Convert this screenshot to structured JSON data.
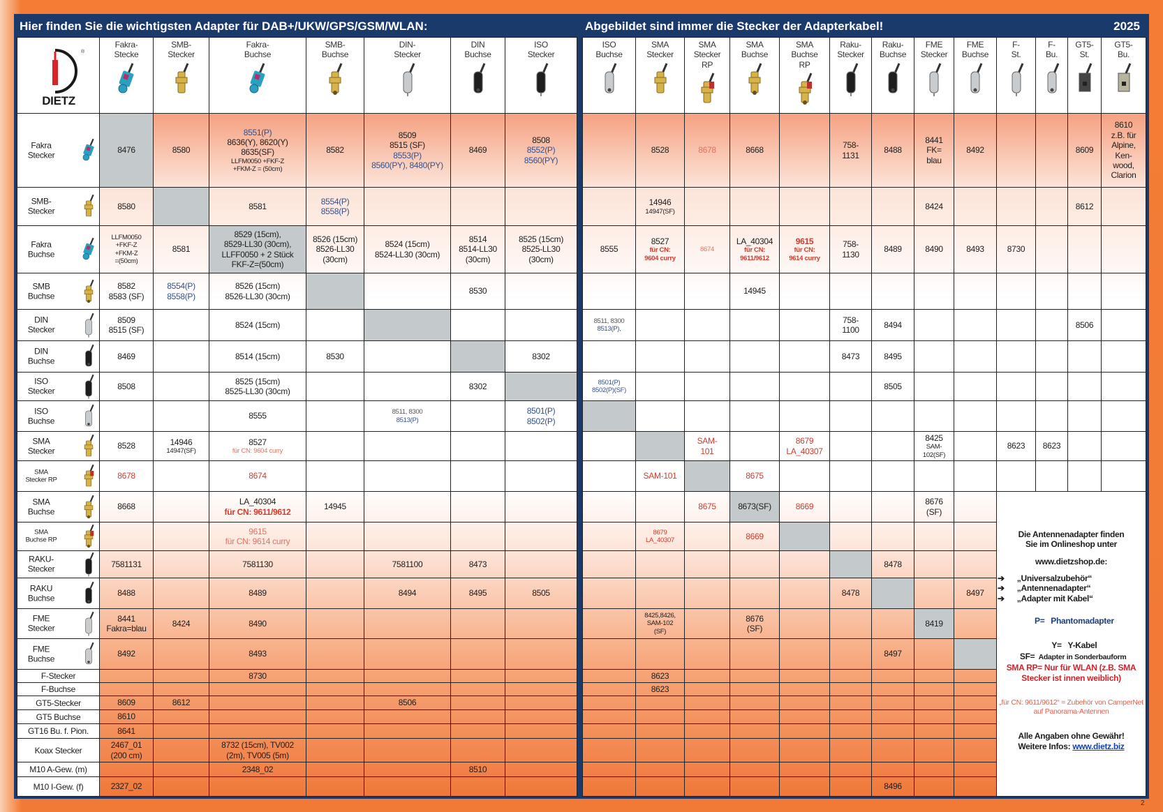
{
  "title_left": "Hier finden Sie die wichtigsten Adapter für DAB+/UKW/GPS/GSM/WLAN:",
  "title_right": "Abgebildet sind immer die Stecker der Adapterkabel!",
  "year": "2025",
  "logo_text": "DIETZ",
  "page_number": "2",
  "colors": {
    "navy": "#1b3a6c",
    "orange": "#f07a36",
    "shade": "#c4cacb",
    "blue": "#34508e",
    "red": "#d23a2c",
    "redlight": "#e0735f"
  },
  "icon_colors": {
    "fakra": "#2a9fc0",
    "gold": "#d6b24a",
    "silver": "#c9cccf",
    "black": "#1e1e1e",
    "beige": "#b8b39c",
    "dark": "#444"
  },
  "columns_left": [
    {
      "label": "Fakra-\nStecke",
      "icon": "fakra-plug-icon",
      "color": "fakra"
    },
    {
      "label": "SMB-\nStecker",
      "icon": "smb-plug-icon",
      "color": "gold"
    },
    {
      "label": "Fakra-\nBuchse",
      "icon": "fakra-socket-icon",
      "color": "fakra"
    },
    {
      "label": "SMB-\nBuchse",
      "icon": "smb-socket-icon",
      "color": "gold"
    },
    {
      "label": "DIN-\nStecker",
      "icon": "din-plug-icon",
      "color": "silver"
    },
    {
      "label": "DIN\nBuchse",
      "icon": "din-socket-icon",
      "color": "black"
    },
    {
      "label": "ISO\nStecker",
      "icon": "iso-plug-icon",
      "color": "black"
    }
  ],
  "columns_right": [
    {
      "label": "ISO\nBuchse",
      "icon": "iso-socket-icon",
      "color": "silver"
    },
    {
      "label": "SMA\nStecker",
      "icon": "sma-plug-icon",
      "color": "gold"
    },
    {
      "label": "SMA\nStecker\nRP",
      "icon": "sma-rp-plug-icon",
      "color": "gold"
    },
    {
      "label": "SMA\nBuchse",
      "icon": "sma-socket-icon",
      "color": "gold"
    },
    {
      "label": "SMA\nBuchse\nRP",
      "icon": "sma-rp-socket-icon",
      "color": "gold"
    },
    {
      "label": "Raku-\nStecker",
      "icon": "raku-plug-icon",
      "color": "black"
    },
    {
      "label": "Raku-\nBuchse",
      "icon": "raku-socket-icon",
      "color": "black"
    },
    {
      "label": "FME\nStecker",
      "icon": "fme-plug-icon",
      "color": "silver"
    },
    {
      "label": "FME\nBuchse",
      "icon": "fme-socket-icon",
      "color": "silver"
    },
    {
      "label": "F-\nSt.",
      "icon": "f-plug-icon",
      "color": "silver"
    },
    {
      "label": "F-\nBu.",
      "icon": "f-socket-icon",
      "color": "silver"
    },
    {
      "label": "GT5-\nSt.",
      "icon": "gt5-plug-icon",
      "color": "dark"
    },
    {
      "label": "GT5-\nBu.",
      "icon": "gt5-socket-icon",
      "color": "beige"
    }
  ],
  "rows": [
    {
      "label": "Fakra\nStecker",
      "icon": "fakra-plug-icon",
      "color": "fakra",
      "shade_left": 0,
      "left": [
        "8476",
        "8580",
        [
          {
            "t": "8551(P)",
            "c": "blue"
          },
          {
            "t": "8636(Y), 8620(Y)\n8635(SF)"
          },
          {
            "t": "LLFM0050 +FKF-Z\n+FKM-Z = (50cm)",
            "sz": "s"
          }
        ],
        "8582",
        [
          {
            "t": "8509\n8515 (SF)"
          },
          {
            "t": "8553(P)\n8560(PY), 8480(PY)",
            "c": "blue"
          }
        ],
        "8469",
        [
          {
            "t": "8508"
          },
          {
            "t": "8552(P)\n8560(PY)",
            "c": "blue"
          }
        ]
      ],
      "right": [
        "",
        "8528",
        [
          {
            "t": "8678",
            "c": "redlight"
          }
        ],
        "8668",
        "",
        "758-\n1131",
        "8488",
        "8441\nFK=\nblau",
        "8492",
        "",
        "",
        "8609",
        "8610\nz.B. für\nAlpine,\nKen-\nwood,\nClarion"
      ]
    },
    {
      "label": "SMB-\nStecker",
      "icon": "smb-plug-icon",
      "color": "gold",
      "shade_left": 1,
      "left": [
        "8580",
        "",
        "8581",
        [
          {
            "t": "8554(P)\n8558(P)",
            "c": "blue"
          }
        ],
        "",
        "",
        ""
      ],
      "right": [
        "",
        [
          {
            "t": "14946"
          },
          {
            "t": "14947(SF)",
            "sz": "s"
          }
        ],
        "",
        "",
        "",
        "",
        "",
        "8424",
        "",
        "",
        "",
        "8612",
        ""
      ]
    },
    {
      "label": "Fakra\nBuchse",
      "icon": "fakra-socket-icon",
      "color": "fakra",
      "shade_left": 2,
      "left": [
        [
          {
            "t": "LLFM0050\n+FKF-Z\n+FKM-Z\n=(50cm)",
            "sz": "s"
          }
        ],
        "8581",
        "8529 (15cm),\n8529-LL30 (30cm),\nLLFF0050 + 2 Stück\nFKF-Z=(50cm)",
        "8526 (15cm)\n8526-LL30\n(30cm)",
        "8524 (15cm)\n8524-LL30 (30cm)",
        "8514\n8514-LL30\n(30cm)",
        "8525 (15cm)\n8525-LL30\n(30cm)"
      ],
      "right": [
        "8555",
        [
          {
            "t": "8527"
          },
          {
            "t": "für CN:\n9604 curry",
            "c": "red",
            "sz": "s",
            "b": true
          }
        ],
        [
          {
            "t": "8674",
            "c": "redlight",
            "sz": "s"
          }
        ],
        [
          {
            "t": "LA_40304"
          },
          {
            "t": "für CN:\n9611/9612",
            "c": "red",
            "sz": "s",
            "b": true
          }
        ],
        [
          {
            "t": "9615",
            "c": "red",
            "b": true
          },
          {
            "t": "für CN:\n9614 curry",
            "c": "red",
            "sz": "s",
            "b": true
          }
        ],
        "758-\n1130",
        "8489",
        "8490",
        "8493",
        "8730",
        "",
        "",
        ""
      ]
    },
    {
      "label": "SMB\nBuchse",
      "icon": "smb-socket-icon",
      "color": "gold",
      "shade_left": 3,
      "left": [
        "8582\n8583 (SF)",
        [
          {
            "t": "8554(P)\n8558(P)",
            "c": "blue"
          }
        ],
        "8526 (15cm)\n8526-LL30 (30cm)",
        "",
        "",
        "8530",
        ""
      ],
      "right": [
        "",
        "",
        "",
        "14945",
        "",
        "",
        "",
        "",
        "",
        "",
        "",
        "",
        ""
      ]
    },
    {
      "label": "DIN\nStecker",
      "icon": "din-plug-icon",
      "color": "silver",
      "shade_left": 4,
      "left": [
        "8509\n8515 (SF)",
        "",
        "8524 (15cm)",
        "",
        "",
        "",
        ""
      ],
      "right": [
        [
          {
            "t": "8511, 8300",
            "sz": "s",
            "c": "grey"
          },
          {
            "t": "8513(P),",
            "sz": "s",
            "c": "blue"
          }
        ],
        "",
        "",
        "",
        "",
        "758-\n1100",
        "8494",
        "",
        "",
        "",
        "",
        "8506",
        ""
      ]
    },
    {
      "label": "DIN\nBuchse",
      "icon": "din-socket-icon",
      "color": "black",
      "shade_left": 5,
      "left": [
        "8469",
        "",
        "8514 (15cm)",
        "8530",
        "",
        "",
        "8302"
      ],
      "right": [
        "",
        "",
        "",
        "",
        "",
        "8473",
        "8495",
        "",
        "",
        "",
        "",
        "",
        ""
      ]
    },
    {
      "label": "ISO\nStecker",
      "icon": "iso-plug-icon",
      "color": "black",
      "shade_left": 6,
      "left": [
        "8508",
        "",
        "8525 (15cm)\n8525-LL30 (30cm)",
        "",
        "",
        "8302",
        ""
      ],
      "right": [
        [
          {
            "t": "8501(P)\n8502(P)(SF)",
            "sz": "s",
            "c": "blue"
          }
        ],
        "",
        "",
        "",
        "",
        "",
        "8505",
        "",
        "",
        "",
        "",
        "",
        ""
      ]
    },
    {
      "label": "ISO\nBuchse",
      "icon": "iso-socket-icon",
      "color": "silver",
      "shade_right": 0,
      "left": [
        "",
        "",
        "8555",
        "",
        [
          {
            "t": "8511, 8300",
            "sz": "s",
            "c": "grey"
          },
          {
            "t": "8513(P)",
            "sz": "s",
            "c": "blue"
          }
        ],
        "",
        [
          {
            "t": "8501(P)\n8502(P)",
            "c": "blue"
          }
        ]
      ],
      "right": [
        "",
        "",
        "",
        "",
        "",
        "",
        "",
        "",
        "",
        "",
        "",
        "",
        ""
      ]
    },
    {
      "label": "SMA\nStecker",
      "icon": "sma-plug-icon",
      "color": "gold",
      "shade_right": 1,
      "left": [
        "8528",
        [
          {
            "t": "14946"
          },
          {
            "t": "14947(SF)",
            "sz": "s"
          }
        ],
        [
          {
            "t": "8527"
          },
          {
            "t": "für CN: 9604 curry",
            "c": "redlight",
            "sz": "s"
          }
        ],
        "",
        "",
        "",
        ""
      ],
      "right": [
        "",
        "",
        [
          {
            "t": "SAM-\n101",
            "c": "red"
          }
        ],
        "",
        [
          {
            "t": "8679\nLA_40307",
            "c": "red"
          }
        ],
        "",
        "",
        [
          {
            "t": "8425"
          },
          {
            "t": "SAM-\n102(SF)",
            "sz": "s"
          }
        ],
        "",
        "8623",
        "8623",
        "",
        ""
      ]
    },
    {
      "label": "SMA\nStecker RP",
      "small_label": true,
      "icon": "sma-rp-plug-icon",
      "color": "gold",
      "shade_right": 2,
      "left": [
        [
          {
            "t": "8678",
            "c": "red"
          }
        ],
        "",
        [
          {
            "t": "8674",
            "c": "red"
          }
        ],
        "",
        "",
        "",
        ""
      ],
      "right": [
        "",
        [
          {
            "t": "SAM-101",
            "c": "red"
          }
        ],
        "",
        [
          {
            "t": "8675",
            "c": "red"
          }
        ],
        "",
        "",
        "",
        "",
        "",
        "",
        "",
        "",
        ""
      ]
    },
    {
      "label": "SMA\nBuchse",
      "icon": "sma-socket-icon",
      "color": "gold",
      "shade_right": 3,
      "left": [
        "8668",
        "",
        [
          {
            "t": "LA_40304"
          },
          {
            "t": "für CN: 9611/9612",
            "c": "red",
            "b": true
          }
        ],
        "14945",
        "",
        "",
        ""
      ],
      "right": [
        "",
        "",
        [
          {
            "t": "8675",
            "c": "red"
          }
        ],
        "8673(SF)",
        [
          {
            "t": "8669",
            "c": "red"
          }
        ],
        "",
        "",
        "8676\n(SF)",
        ""
      ]
    },
    {
      "label": "SMA\nBuchse RP",
      "small_label": true,
      "icon": "sma-rp-socket-icon",
      "color": "gold",
      "shade_right": 4,
      "left": [
        "",
        "",
        [
          {
            "t": "9615",
            "c": "redlight"
          },
          {
            "t": "für CN: 9614 curry",
            "c": "redlight"
          }
        ],
        "",
        "",
        "",
        ""
      ],
      "right": [
        "",
        [
          {
            "t": "8679\nLA_40307",
            "c": "red",
            "sz": "s"
          }
        ],
        "",
        [
          {
            "t": "8669",
            "c": "red"
          }
        ],
        "",
        "",
        "",
        "",
        ""
      ]
    },
    {
      "label": "RAKU-\nStecker",
      "icon": "raku-plug-icon",
      "color": "black",
      "shade_right": 5,
      "left": [
        "7581131",
        "",
        "7581130",
        "",
        "7581100",
        "8473",
        ""
      ],
      "right": [
        "",
        "",
        "",
        "",
        "",
        "",
        "8478",
        "",
        ""
      ]
    },
    {
      "label": "RAKU\nBuchse",
      "icon": "raku-socket-icon",
      "color": "black",
      "shade_right": 6,
      "left": [
        "8488",
        "",
        "8489",
        "",
        "8494",
        "8495",
        "8505"
      ],
      "right": [
        "",
        "",
        "",
        "",
        "",
        "8478",
        "",
        "",
        "8497"
      ]
    },
    {
      "label": "FME\nStecker",
      "icon": "fme-plug-icon",
      "color": "silver",
      "shade_right": 7,
      "left": [
        "8441\nFakra=blau",
        "8424",
        "8490",
        "",
        "",
        "",
        ""
      ],
      "right": [
        "",
        [
          {
            "t": "8425,8426,\nSAM-102\n(SF)",
            "sz": "s"
          }
        ],
        "",
        "8676\n(SF)",
        "",
        "",
        "",
        "8419",
        ""
      ]
    },
    {
      "label": "FME\nBuchse",
      "icon": "fme-socket-icon",
      "color": "silver",
      "shade_right": 8,
      "left": [
        "8492",
        "",
        "8493",
        "",
        "",
        "",
        ""
      ],
      "right": [
        "",
        "",
        "",
        "",
        "",
        "",
        "8497",
        "",
        ""
      ]
    },
    {
      "label": "F-Stecker",
      "left": [
        "",
        "",
        "8730",
        "",
        "",
        "",
        ""
      ],
      "right": [
        "",
        "8623",
        "",
        "",
        "",
        "",
        "",
        "",
        ""
      ]
    },
    {
      "label": "F-Buchse",
      "left": [
        "",
        "",
        "",
        "",
        "",
        "",
        ""
      ],
      "right": [
        "",
        "8623",
        "",
        "",
        "",
        "",
        "",
        "",
        ""
      ]
    },
    {
      "label": "GT5-Stecker",
      "left": [
        "8609",
        "8612",
        "",
        "",
        "8506",
        "",
        ""
      ],
      "right": [
        "",
        "",
        "",
        "",
        "",
        "",
        "",
        "",
        ""
      ]
    },
    {
      "label": "GT5 Buchse",
      "left": [
        "8610",
        "",
        "",
        "",
        "",
        "",
        ""
      ],
      "right": [
        "",
        "",
        "",
        "",
        "",
        "",
        "",
        "",
        ""
      ]
    },
    {
      "label": "GT16 Bu. f. Pion.",
      "left": [
        "8641",
        "",
        "",
        "",
        "",
        "",
        ""
      ],
      "right": [
        "",
        "",
        "",
        "",
        "",
        "",
        "",
        "",
        ""
      ]
    },
    {
      "label": "Koax Stecker",
      "left": [
        "2467_01\n(200 cm)",
        "",
        "8732 (15cm), TV002\n(2m), TV005 (5m)",
        "",
        "",
        "",
        ""
      ],
      "right": [
        "",
        "",
        "",
        "",
        "",
        "",
        "",
        "",
        ""
      ]
    },
    {
      "label": "M10 A-Gew. (m)",
      "left": [
        "",
        "",
        "2348_02",
        "",
        "",
        "8510",
        ""
      ],
      "right": [
        "",
        "",
        "",
        "",
        "",
        "",
        "",
        "",
        ""
      ]
    },
    {
      "label": "M10 I-Gew. (f)",
      "left": [
        "2327_02",
        "",
        "",
        "",
        "",
        "",
        ""
      ],
      "right": [
        "",
        "",
        "",
        "",
        "",
        "",
        "8496",
        "",
        ""
      ]
    }
  ],
  "info": {
    "intro": "Die Antennenadapter finden\nSie  im Onlineshop unter",
    "shop": "www.dietzshop.de:",
    "categories": [
      "„Universalzubehör“",
      "„Antennenadapter“",
      "„Adapter mit Kabel“"
    ],
    "legend": [
      {
        "key": "P=",
        "value": "Phantomadapter",
        "style": "blue"
      },
      {
        "key": "Y=",
        "value": "Y-Kabel",
        "style": "plain"
      },
      {
        "key": "SF=",
        "value": "Adapter in Sonderbauform",
        "style": "plain"
      }
    ],
    "sma_rp_note": "SMA RP= Nur für WLAN (z.B. SMA Stecker ist innen weiblich)",
    "campernet_note": "„für CN: 9611/9612“ = Zubehör von CamperNet auf Panorama-Antennen",
    "disclaimer": "Alle Angaben ohne Gewähr!",
    "more_label": "Weitere Infos: ",
    "more_link": "www.dietz.biz"
  }
}
